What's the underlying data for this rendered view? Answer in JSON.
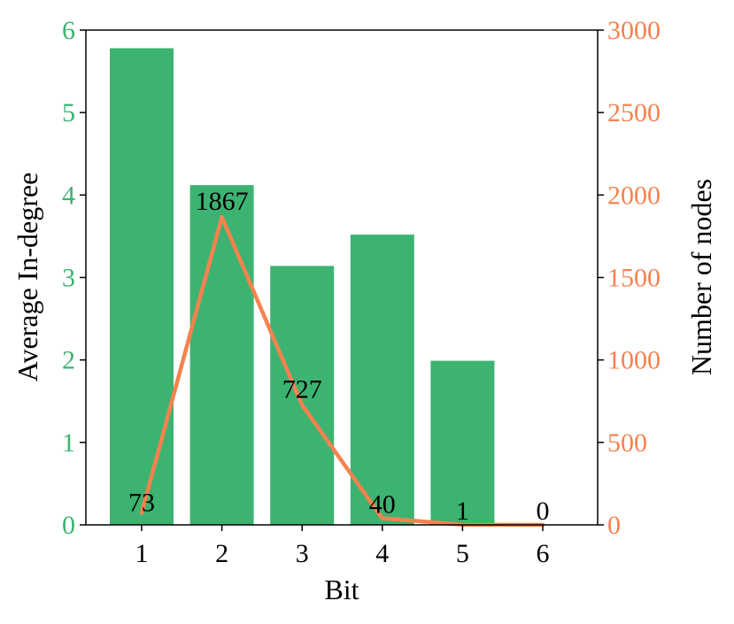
{
  "chart_data": {
    "type": "bar+line",
    "categories": [
      "1",
      "2",
      "3",
      "4",
      "5",
      "6"
    ],
    "xlabel": "Bit",
    "colors": {
      "bars": "#3cb371",
      "line": "#f5824f",
      "left_axis": "#3cb371",
      "right_axis": "#f5824f"
    },
    "left_axis": {
      "label": "Average In-degree",
      "ylim": [
        0,
        6
      ],
      "ticks": [
        "0",
        "1",
        "2",
        "3",
        "4",
        "5",
        "6"
      ]
    },
    "right_axis": {
      "label": "Number of nodes",
      "ylim": [
        0,
        3000
      ],
      "ticks": [
        "0",
        "500",
        "1000",
        "1500",
        "2000",
        "2500",
        "3000"
      ]
    },
    "series": [
      {
        "name": "Average In-degree",
        "kind": "bar",
        "axis": "left",
        "values": [
          5.78,
          4.12,
          3.14,
          3.52,
          1.99,
          0
        ]
      },
      {
        "name": "Number of nodes",
        "kind": "line",
        "axis": "right",
        "values": [
          73,
          1867,
          727,
          40,
          1,
          0
        ]
      }
    ],
    "data_labels": [
      "73",
      "1867",
      "727",
      "40",
      "1",
      "0"
    ],
    "grid": false,
    "legend": "none"
  }
}
